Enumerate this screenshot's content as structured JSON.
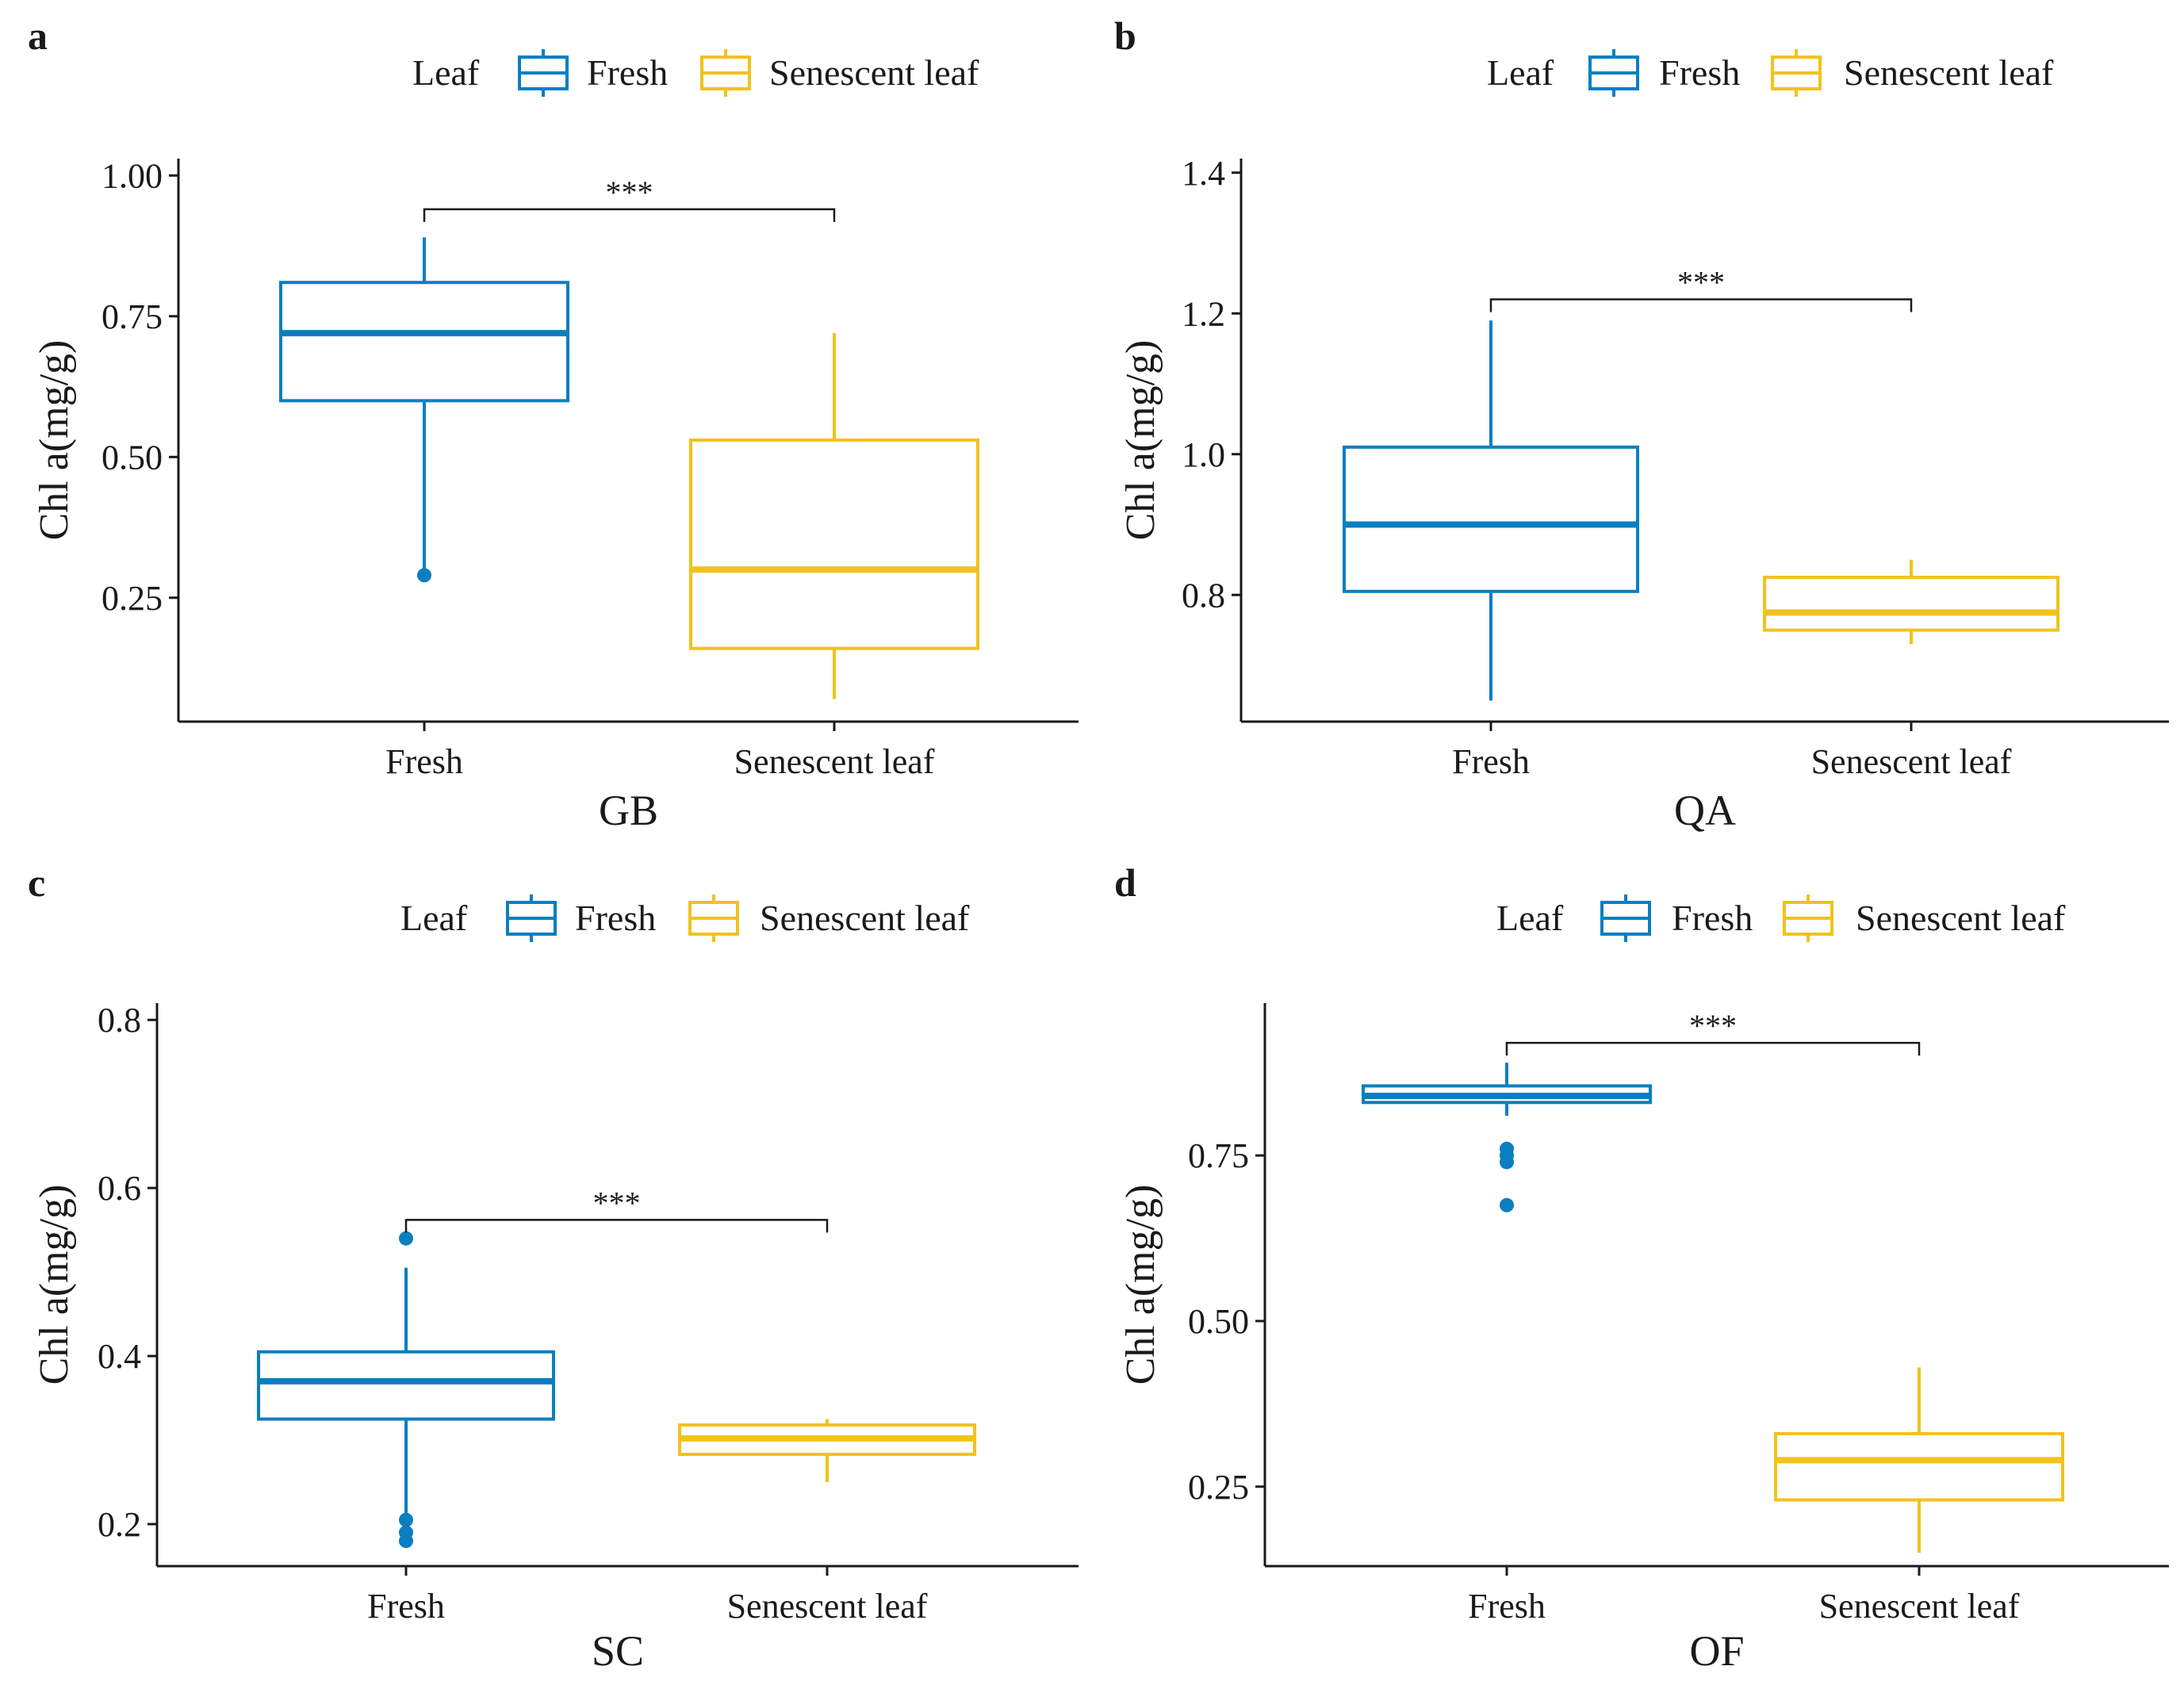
{
  "colors": {
    "fresh": "#0a7fc0",
    "senescent": "#f2c21c",
    "axis": "#1a1a1a"
  },
  "chart_data": [
    {
      "panel": "a",
      "type": "boxplot",
      "title": "",
      "legend": {
        "title": "Leaf",
        "entries": [
          "Fresh",
          "Senescent leaf"
        ],
        "position": "top"
      },
      "xlabel": "GB",
      "ylabel": "Chl a(mg/g)",
      "categories": [
        "Fresh",
        "Senescent leaf"
      ],
      "ylim": [
        0.03,
        1.03
      ],
      "yticks": [
        0.25,
        0.5,
        0.75,
        1.0
      ],
      "ytick_labels": [
        "0.25",
        "0.50",
        "0.75",
        "1.00"
      ],
      "series": [
        {
          "name": "Fresh",
          "whisker_low": 0.3,
          "q1": 0.6,
          "median": 0.72,
          "q3": 0.81,
          "whisker_high": 0.89,
          "outliers": [
            0.29
          ]
        },
        {
          "name": "Senescent leaf",
          "whisker_low": 0.07,
          "q1": 0.16,
          "median": 0.3,
          "q3": 0.53,
          "whisker_high": 0.72,
          "outliers": []
        }
      ],
      "significance": {
        "label": "***",
        "y": 0.94
      }
    },
    {
      "panel": "b",
      "type": "boxplot",
      "title": "",
      "legend": {
        "title": "Leaf",
        "entries": [
          "Fresh",
          "Senescent leaf"
        ],
        "position": "top"
      },
      "xlabel": "QA",
      "ylabel": "Chl a(mg/g)",
      "categories": [
        "Fresh",
        "Senescent leaf"
      ],
      "ylim": [
        0.62,
        1.42
      ],
      "yticks": [
        0.8,
        1.0,
        1.2,
        1.4
      ],
      "ytick_labels": [
        "0.8",
        "1.0",
        "1.2",
        "1.4"
      ],
      "series": [
        {
          "name": "Fresh",
          "whisker_low": 0.65,
          "q1": 0.805,
          "median": 0.9,
          "q3": 1.01,
          "whisker_high": 1.19,
          "outliers": []
        },
        {
          "name": "Senescent leaf",
          "whisker_low": 0.73,
          "q1": 0.75,
          "median": 0.775,
          "q3": 0.825,
          "whisker_high": 0.85,
          "outliers": []
        }
      ],
      "significance": {
        "label": "***",
        "y": 1.22
      }
    },
    {
      "panel": "c",
      "type": "boxplot",
      "title": "",
      "legend": {
        "title": "Leaf",
        "entries": [
          "Fresh",
          "Senescent leaf"
        ],
        "position": "top"
      },
      "xlabel": "SC",
      "ylabel": "Chl a(mg/g)",
      "categories": [
        "Fresh",
        "Senescent leaf"
      ],
      "ylim": [
        0.15,
        0.82
      ],
      "yticks": [
        0.2,
        0.4,
        0.6,
        0.8
      ],
      "ytick_labels": [
        "0.2",
        "0.4",
        "0.6",
        "0.8"
      ],
      "series": [
        {
          "name": "Fresh",
          "whisker_low": 0.21,
          "q1": 0.325,
          "median": 0.37,
          "q3": 0.405,
          "whisker_high": 0.505,
          "outliers": [
            0.205,
            0.19,
            0.18,
            0.54
          ]
        },
        {
          "name": "Senescent leaf",
          "whisker_low": 0.25,
          "q1": 0.283,
          "median": 0.302,
          "q3": 0.318,
          "whisker_high": 0.325,
          "outliers": []
        }
      ],
      "significance": {
        "label": "***",
        "y": 0.562
      }
    },
    {
      "panel": "d",
      "type": "boxplot",
      "title": "",
      "legend": {
        "title": "Leaf",
        "entries": [
          "Fresh",
          "Senescent leaf"
        ],
        "position": "top"
      },
      "xlabel": "OF",
      "ylabel": "Chl a(mg/g)",
      "categories": [
        "Fresh",
        "Senescent leaf"
      ],
      "ylim": [
        0.13,
        0.98
      ],
      "yticks": [
        0.25,
        0.5,
        0.75
      ],
      "ytick_labels": [
        "0.25",
        "0.50",
        "0.75"
      ],
      "series": [
        {
          "name": "Fresh",
          "whisker_low": 0.81,
          "q1": 0.83,
          "median": 0.84,
          "q3": 0.855,
          "whisker_high": 0.89,
          "outliers": [
            0.76,
            0.75,
            0.74,
            0.675
          ]
        },
        {
          "name": "Senescent leaf",
          "whisker_low": 0.15,
          "q1": 0.23,
          "median": 0.29,
          "q3": 0.33,
          "whisker_high": 0.43,
          "outliers": []
        }
      ],
      "significance": {
        "label": "***",
        "y": 0.92
      }
    }
  ]
}
